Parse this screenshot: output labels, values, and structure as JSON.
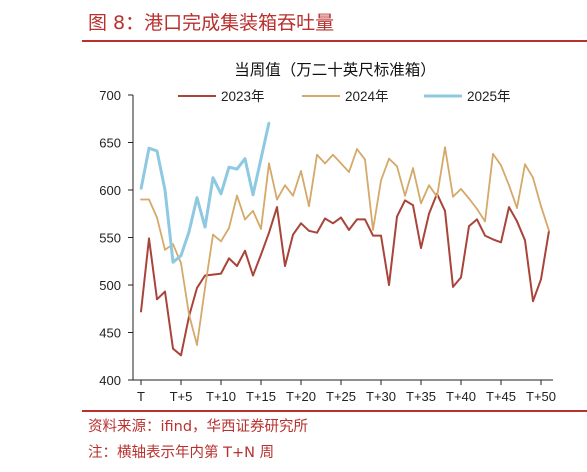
{
  "figure": {
    "title": "图 8：港口完成集装箱吞吐量",
    "source": "资料来源：ifind，华西证券研究所",
    "note": "注：横轴表示年内第 T+N 周"
  },
  "chart_data": {
    "type": "line",
    "title": "当周值（万二十英尺标准箱）",
    "xlabel": "",
    "ylabel": "",
    "ylim": [
      400,
      700
    ],
    "yticks": [
      400,
      450,
      500,
      550,
      600,
      650,
      700
    ],
    "xlim": [
      0,
      51
    ],
    "xticks": [
      {
        "pos": 0,
        "label": "T"
      },
      {
        "pos": 5,
        "label": "T+5"
      },
      {
        "pos": 10,
        "label": "T+10"
      },
      {
        "pos": 15,
        "label": "T+15"
      },
      {
        "pos": 20,
        "label": "T+20"
      },
      {
        "pos": 25,
        "label": "T+25"
      },
      {
        "pos": 30,
        "label": "T+30"
      },
      {
        "pos": 35,
        "label": "T+35"
      },
      {
        "pos": 40,
        "label": "T+40"
      },
      {
        "pos": 45,
        "label": "T+45"
      },
      {
        "pos": 50,
        "label": "T+50"
      }
    ],
    "grid": false,
    "legend": "top",
    "series": [
      {
        "name": "2023年",
        "color": "#a9443a",
        "values": [
          472,
          549,
          485,
          493,
          433,
          426,
          467,
          497,
          510,
          511,
          512,
          528,
          520,
          536,
          510,
          532,
          555,
          582,
          520,
          553,
          565,
          557,
          555,
          570,
          565,
          571,
          558,
          569,
          569,
          552,
          552,
          500,
          572,
          589,
          584,
          539,
          575,
          596,
          578,
          498,
          508,
          562,
          569,
          552,
          548,
          545,
          582,
          567,
          547,
          483,
          506,
          557
        ]
      },
      {
        "name": "2024年",
        "color": "#d4a96a",
        "values": [
          590,
          590,
          571,
          537,
          543,
          523,
          469,
          437,
          497,
          553,
          546,
          560,
          594,
          569,
          578,
          559,
          628,
          590,
          605,
          594,
          620,
          583,
          637,
          628,
          637,
          628,
          619,
          643,
          632,
          558,
          610,
          633,
          625,
          594,
          623,
          586,
          605,
          593,
          645,
          593,
          601,
          591,
          580,
          567,
          638,
          626,
          605,
          581,
          627,
          613,
          583,
          557
        ]
      },
      {
        "name": "2025年",
        "color": "#8fc9e1",
        "values": [
          601,
          644,
          641,
          600,
          524,
          531,
          556,
          592,
          561,
          613,
          596,
          624,
          622,
          633,
          595,
          633,
          671
        ]
      }
    ]
  }
}
